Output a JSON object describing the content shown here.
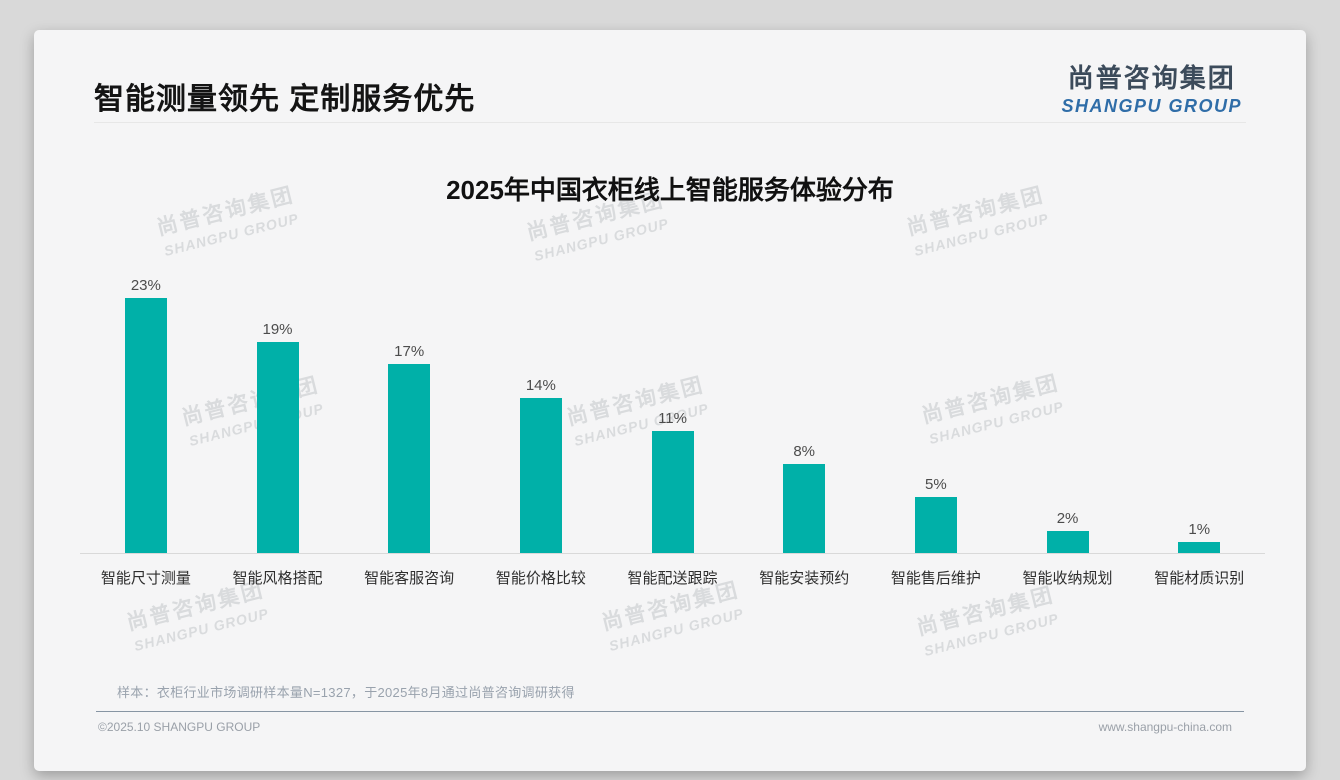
{
  "header": {
    "title": "智能测量领先 定制服务优先",
    "logo": {
      "cn": "尚普咨询集团",
      "en": "SHANGPU GROUP"
    }
  },
  "brand": {
    "logo_cn_color": "#3c4b5b",
    "logo_en_color": "#2f6da8",
    "bar_color": "#00B0A8",
    "watermark_line1": "尚普咨询集团",
    "watermark_line2": "SHANGPU GROUP"
  },
  "chart_data": {
    "type": "bar",
    "title": "2025年中国衣柜线上智能服务体验分布",
    "categories": [
      "智能尺寸测量",
      "智能风格搭配",
      "智能客服咨询",
      "智能价格比较",
      "智能配送跟踪",
      "智能安装预约",
      "智能售后维护",
      "智能收纳规划",
      "智能材质识别"
    ],
    "values": [
      23,
      19,
      17,
      14,
      11,
      8,
      5,
      2,
      1
    ],
    "unit": "%",
    "data_labels": true,
    "bar_color": "#00B0A8",
    "xlabel": "",
    "ylabel": "",
    "ylim": [
      0,
      25
    ],
    "grid": false,
    "legend": false
  },
  "footnote": {
    "sample_note": "样本：衣柜行业市场调研样本量N=1327，于2025年8月通过尚普咨询调研获得"
  },
  "footer": {
    "copyright": "©2025.10 SHANGPU GROUP",
    "website": "www.shangpu-china.com"
  }
}
